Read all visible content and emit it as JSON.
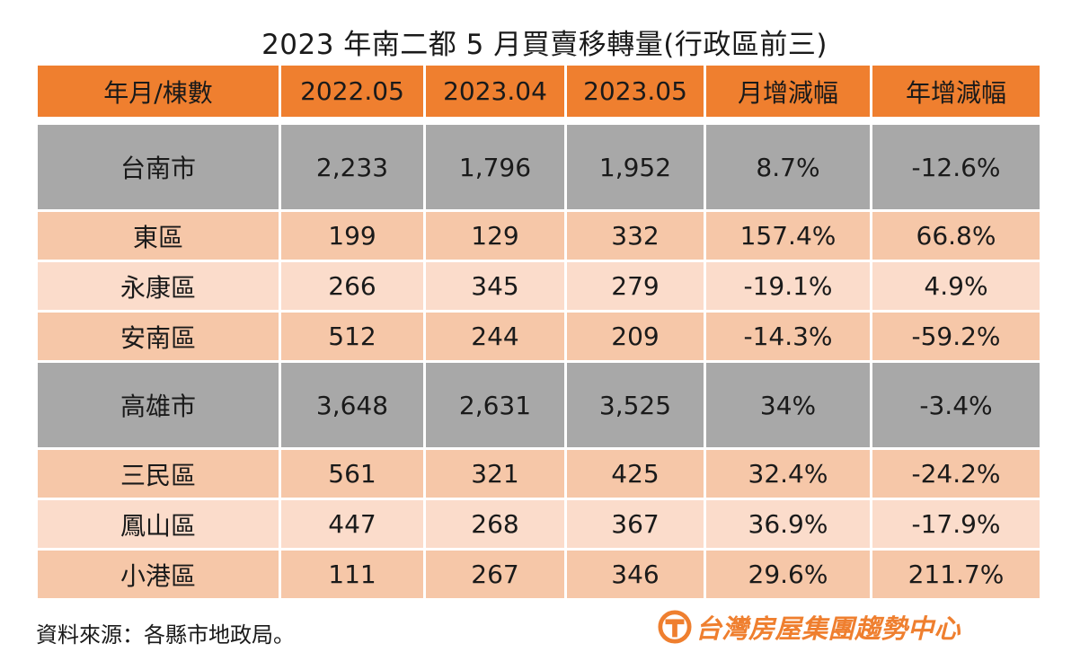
{
  "title": "2023 年南二都 5 月買賣移轉量(行政區前三)",
  "colors": {
    "header_bg": "#ef7f2f",
    "city_row_bg": "#a8a8a8",
    "district_dark_bg": "#f6c7a8",
    "district_light_bg": "#fbdccb",
    "brand": "#ef7f2f"
  },
  "table": {
    "headers": [
      "年月/棟數",
      "2022.05",
      "2023.04",
      "2023.05",
      "月增減幅",
      "年增減幅"
    ],
    "rows": [
      {
        "type": "city",
        "cells": [
          "台南市",
          "2,233",
          "1,796",
          "1,952",
          "8.7%",
          "-12.6%"
        ]
      },
      {
        "type": "district",
        "cells": [
          "東區",
          "199",
          "129",
          "332",
          "157.4%",
          "66.8%"
        ]
      },
      {
        "type": "district",
        "cells": [
          "永康區",
          "266",
          "345",
          "279",
          "-19.1%",
          "4.9%"
        ]
      },
      {
        "type": "district",
        "cells": [
          "安南區",
          "512",
          "244",
          "209",
          "-14.3%",
          "-59.2%"
        ]
      },
      {
        "type": "city",
        "cells": [
          "高雄市",
          "3,648",
          "2,631",
          "3,525",
          "34%",
          "-3.4%"
        ]
      },
      {
        "type": "district",
        "cells": [
          "三民區",
          "561",
          "321",
          "425",
          "32.4%",
          "-24.2%"
        ]
      },
      {
        "type": "district",
        "cells": [
          "鳳山區",
          "447",
          "268",
          "367",
          "36.9%",
          "-17.9%"
        ]
      },
      {
        "type": "district",
        "cells": [
          "小港區",
          "111",
          "267",
          "346",
          "29.6%",
          "211.7%"
        ]
      }
    ]
  },
  "footer": {
    "source_note": "資料來源：各縣市地政局。",
    "brand_name": "台灣房屋集團趨勢中心",
    "brand_logo_icon": "taiwan-realty-logo-icon"
  }
}
